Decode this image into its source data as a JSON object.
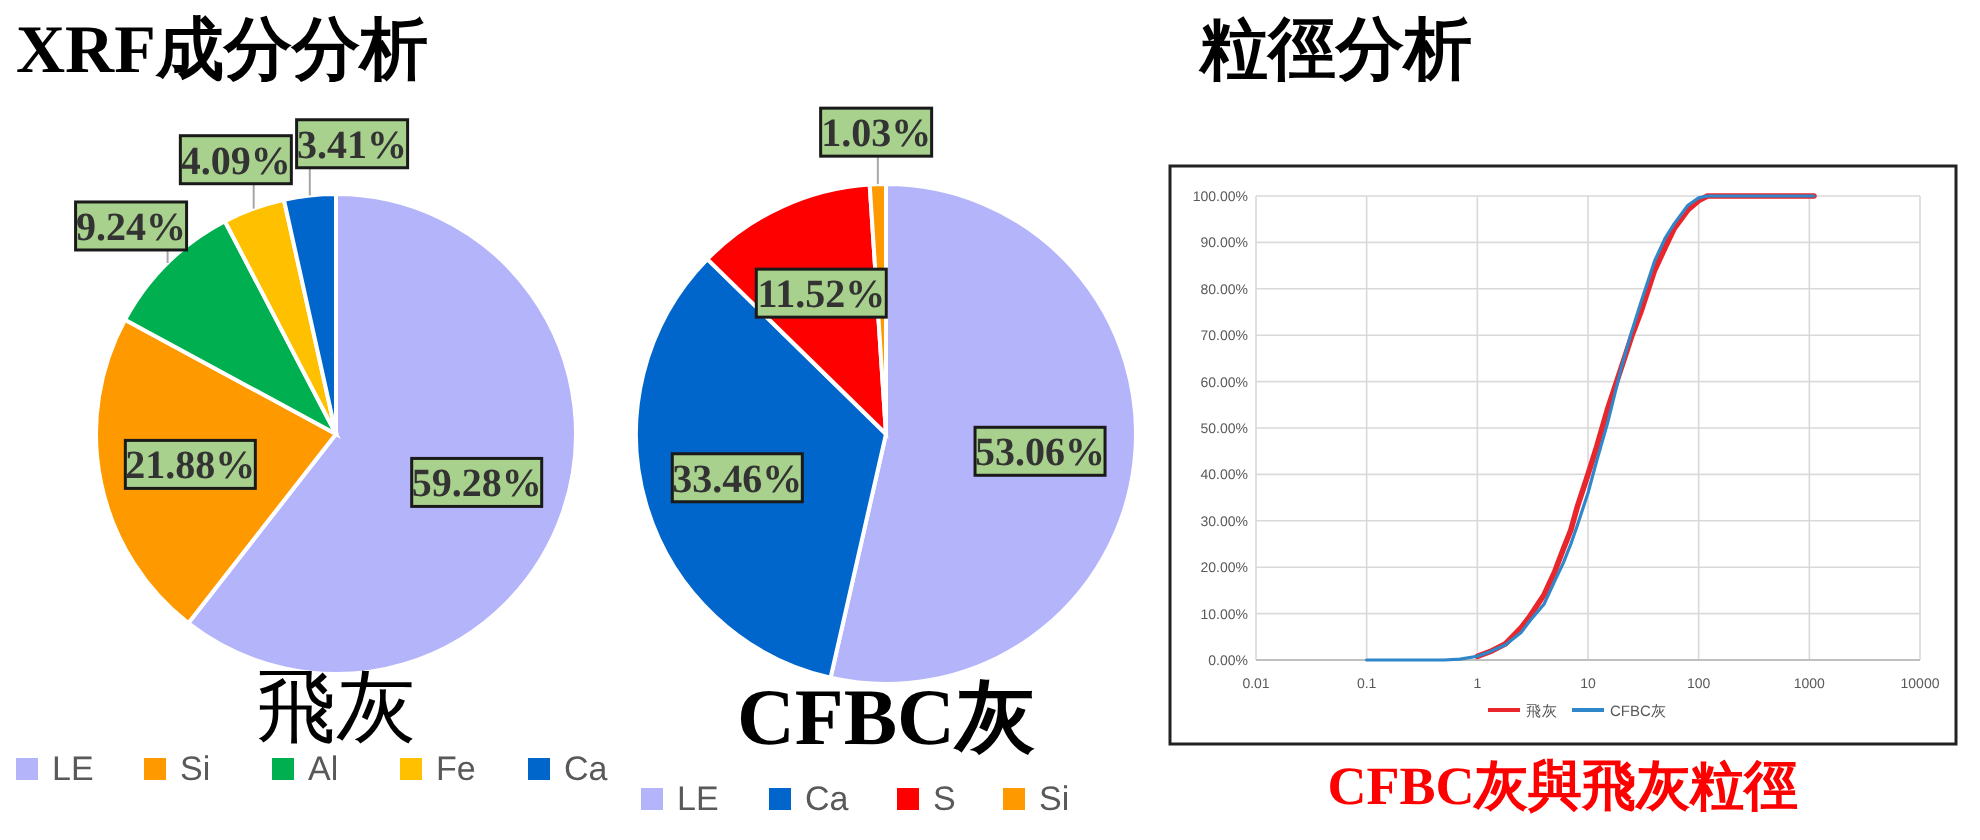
{
  "chart_data": [
    {
      "type": "pie",
      "title": "XRF成分分析",
      "xlabel": "飛灰",
      "categories": [
        "LE",
        "Si",
        "Al",
        "Fe",
        "Ca"
      ],
      "values": [
        59.28,
        21.88,
        9.24,
        4.09,
        3.41
      ],
      "value_labels": [
        "59.28%",
        "21.88%",
        "9.24%",
        "4.09%",
        "3.41%"
      ],
      "colors": [
        "#b4b4fa",
        "#ff9900",
        "#00b050",
        "#ffc000",
        "#0066cc"
      ],
      "legend": "bottom"
    },
    {
      "type": "pie",
      "xlabel": "CFBC灰",
      "categories": [
        "LE",
        "Ca",
        "S",
        "Si"
      ],
      "values": [
        53.06,
        33.46,
        11.52,
        1.03
      ],
      "value_labels": [
        "53.06%",
        "33.46%",
        "11.52%",
        "1.03%"
      ],
      "colors": [
        "#b4b4fa",
        "#0066cc",
        "#ff0000",
        "#ff9900"
      ],
      "legend": "bottom"
    },
    {
      "type": "line",
      "title": "粒徑分析",
      "annotations": [
        "CFBC灰與飛灰粒徑"
      ],
      "log": "x",
      "grid": true,
      "legend": "bottom",
      "xlim": [
        0.01,
        10000
      ],
      "xticks": [
        0.01,
        0.1,
        1,
        10,
        100,
        1000,
        10000
      ],
      "ylim": [
        0,
        100
      ],
      "yticks": [
        {
          "value": 0,
          "label": "0.00%"
        },
        {
          "value": 10,
          "label": "10.00%"
        },
        {
          "value": 20,
          "label": "20.00%"
        },
        {
          "value": 30,
          "label": "30.00%"
        },
        {
          "value": 40,
          "label": "40.00%"
        },
        {
          "value": 50,
          "label": "50.00%"
        },
        {
          "value": 60,
          "label": "60.00%"
        },
        {
          "value": 70,
          "label": "70.00%"
        },
        {
          "value": 80,
          "label": "80.00%"
        },
        {
          "value": 90,
          "label": "90.00%"
        },
        {
          "value": 100,
          "label": "100.00%"
        }
      ],
      "x": [
        0.1,
        0.5,
        0.7,
        1,
        1.3,
        1.8,
        2.5,
        3,
        4,
        5,
        6,
        7,
        8,
        10,
        12,
        15,
        20,
        25,
        30,
        40,
        50,
        60,
        80,
        100,
        120,
        1100
      ],
      "series": [
        {
          "name": "飛灰",
          "color": "#e8262b",
          "values": [
            null,
            null,
            null,
            0.8,
            1.8,
            3.5,
            7,
            9.5,
            14,
            19,
            24,
            28,
            33,
            40,
            46,
            54,
            63,
            70,
            75,
            84,
            89,
            93,
            97,
            99,
            100,
            100
          ]
        },
        {
          "name": "CFBC灰",
          "color": "#2f86c8",
          "values": [
            0,
            0,
            0.2,
            0.8,
            1.8,
            3.3,
            6,
            8.5,
            12,
            17,
            21,
            25,
            29,
            36,
            43,
            51,
            63,
            71,
            77,
            86,
            91,
            94,
            98,
            99.6,
            100,
            100
          ]
        }
      ]
    }
  ]
}
